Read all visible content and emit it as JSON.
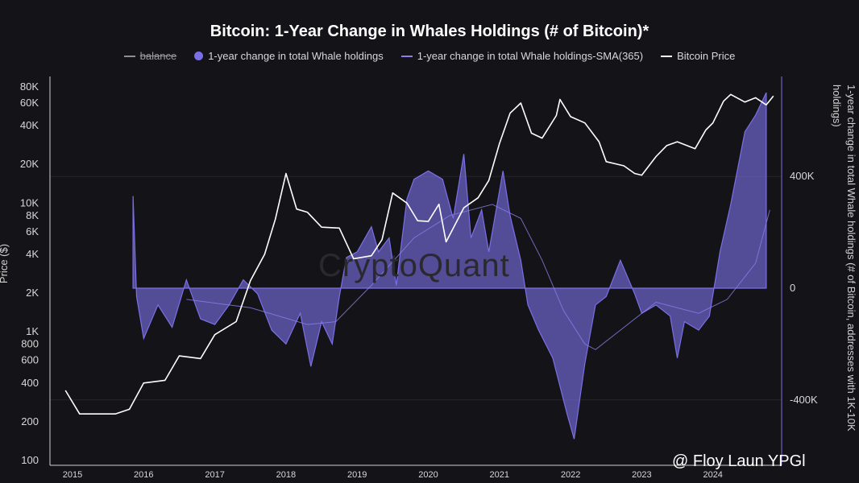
{
  "chart_data": {
    "type": "area",
    "title": "Bitcoin: 1-Year Change in Whales Holdings (# of Bitcoin)*",
    "y_left_label": "Price ($)",
    "y_right_label": "1-year change in total Whale holdings (# of Bitcoin, addresses with 1K-10K holdings)",
    "y_left_scale": "log",
    "y_left_ticks": [
      100,
      200,
      400,
      600,
      800,
      1000,
      2000,
      4000,
      6000,
      8000,
      10000,
      20000,
      40000,
      60000,
      80000
    ],
    "y_left_tick_labels": [
      "100",
      "200",
      "400",
      "600",
      "800",
      "1K",
      "2K",
      "4K",
      "6K",
      "8K",
      "10K",
      "20K",
      "40K",
      "60K",
      "80K"
    ],
    "y_right_ticks": [
      -400000,
      0,
      400000
    ],
    "y_right_tick_labels": [
      "-400K",
      "0",
      "400K"
    ],
    "x_ticks": [
      "2015",
      "2016",
      "2017",
      "2018",
      "2019",
      "2020",
      "2021",
      "2022",
      "2023",
      "2024"
    ],
    "x_range": [
      2014.8,
      2024.9
    ],
    "legend_position": "top-center",
    "series": [
      {
        "name": "balance",
        "color": "#8f8f8f",
        "style": "line-struck"
      },
      {
        "name": "1-year change in total Whale holdings",
        "color": "#7b6fe6",
        "style": "area",
        "points": [
          [
            2015.85,
            330000
          ],
          [
            2015.9,
            -30000
          ],
          [
            2016.0,
            -180000
          ],
          [
            2016.2,
            -60000
          ],
          [
            2016.4,
            -140000
          ],
          [
            2016.6,
            30000
          ],
          [
            2016.8,
            -110000
          ],
          [
            2017.0,
            -130000
          ],
          [
            2017.2,
            -60000
          ],
          [
            2017.4,
            30000
          ],
          [
            2017.6,
            -20000
          ],
          [
            2017.8,
            -150000
          ],
          [
            2018.0,
            -200000
          ],
          [
            2018.2,
            -90000
          ],
          [
            2018.35,
            -280000
          ],
          [
            2018.5,
            -120000
          ],
          [
            2018.65,
            -200000
          ],
          [
            2018.75,
            -30000
          ],
          [
            2018.85,
            110000
          ],
          [
            2019.0,
            130000
          ],
          [
            2019.2,
            220000
          ],
          [
            2019.3,
            130000
          ],
          [
            2019.45,
            180000
          ],
          [
            2019.55,
            10000
          ],
          [
            2019.7,
            320000
          ],
          [
            2019.8,
            390000
          ],
          [
            2020.0,
            420000
          ],
          [
            2020.2,
            390000
          ],
          [
            2020.35,
            250000
          ],
          [
            2020.5,
            480000
          ],
          [
            2020.6,
            180000
          ],
          [
            2020.75,
            280000
          ],
          [
            2020.85,
            130000
          ],
          [
            2021.05,
            420000
          ],
          [
            2021.15,
            260000
          ],
          [
            2021.3,
            100000
          ],
          [
            2021.4,
            -60000
          ],
          [
            2021.55,
            -150000
          ],
          [
            2021.75,
            -250000
          ],
          [
            2021.95,
            -450000
          ],
          [
            2022.05,
            -540000
          ],
          [
            2022.2,
            -270000
          ],
          [
            2022.35,
            -60000
          ],
          [
            2022.5,
            -30000
          ],
          [
            2022.7,
            100000
          ],
          [
            2022.9,
            -20000
          ],
          [
            2023.0,
            -90000
          ],
          [
            2023.2,
            -60000
          ],
          [
            2023.4,
            -100000
          ],
          [
            2023.5,
            -250000
          ],
          [
            2023.6,
            -120000
          ],
          [
            2023.8,
            -150000
          ],
          [
            2023.95,
            -100000
          ],
          [
            2024.1,
            130000
          ],
          [
            2024.25,
            300000
          ],
          [
            2024.45,
            560000
          ],
          [
            2024.6,
            620000
          ],
          [
            2024.75,
            700000
          ]
        ]
      },
      {
        "name": "1-year change in total Whale holdings-SMA(365)",
        "color": "#8a7fe8",
        "style": "line",
        "points": [
          [
            2016.6,
            -40000
          ],
          [
            2017.5,
            -70000
          ],
          [
            2018.3,
            -130000
          ],
          [
            2018.7,
            -120000
          ],
          [
            2019.2,
            10000
          ],
          [
            2019.8,
            180000
          ],
          [
            2020.3,
            260000
          ],
          [
            2020.9,
            300000
          ],
          [
            2021.3,
            250000
          ],
          [
            2021.6,
            100000
          ],
          [
            2021.9,
            -80000
          ],
          [
            2022.2,
            -200000
          ],
          [
            2022.35,
            -220000
          ],
          [
            2022.7,
            -150000
          ],
          [
            2023.2,
            -50000
          ],
          [
            2023.8,
            -90000
          ],
          [
            2024.2,
            -40000
          ],
          [
            2024.6,
            90000
          ],
          [
            2024.8,
            280000
          ]
        ]
      },
      {
        "name": "Bitcoin Price",
        "color": "#ffffff",
        "style": "line",
        "points": [
          [
            2014.9,
            350
          ],
          [
            2015.1,
            230
          ],
          [
            2015.3,
            230
          ],
          [
            2015.6,
            230
          ],
          [
            2015.8,
            250
          ],
          [
            2016.0,
            400
          ],
          [
            2016.3,
            420
          ],
          [
            2016.5,
            650
          ],
          [
            2016.8,
            620
          ],
          [
            2017.0,
            950
          ],
          [
            2017.3,
            1200
          ],
          [
            2017.5,
            2500
          ],
          [
            2017.7,
            4000
          ],
          [
            2017.85,
            7500
          ],
          [
            2018.0,
            17000
          ],
          [
            2018.15,
            9000
          ],
          [
            2018.3,
            8500
          ],
          [
            2018.5,
            6500
          ],
          [
            2018.75,
            6400
          ],
          [
            2018.95,
            3700
          ],
          [
            2019.2,
            3900
          ],
          [
            2019.35,
            5200
          ],
          [
            2019.5,
            12000
          ],
          [
            2019.7,
            10000
          ],
          [
            2019.85,
            7300
          ],
          [
            2020.0,
            7200
          ],
          [
            2020.15,
            9800
          ],
          [
            2020.25,
            5000
          ],
          [
            2020.5,
            9200
          ],
          [
            2020.7,
            11000
          ],
          [
            2020.85,
            15000
          ],
          [
            2021.0,
            29000
          ],
          [
            2021.15,
            50000
          ],
          [
            2021.3,
            60000
          ],
          [
            2021.45,
            35000
          ],
          [
            2021.6,
            32000
          ],
          [
            2021.8,
            48000
          ],
          [
            2021.85,
            64000
          ],
          [
            2022.0,
            47000
          ],
          [
            2022.2,
            42000
          ],
          [
            2022.4,
            30000
          ],
          [
            2022.5,
            21000
          ],
          [
            2022.75,
            19500
          ],
          [
            2022.9,
            17000
          ],
          [
            2023.0,
            16500
          ],
          [
            2023.2,
            23000
          ],
          [
            2023.35,
            28000
          ],
          [
            2023.5,
            30000
          ],
          [
            2023.75,
            26500
          ],
          [
            2023.9,
            37000
          ],
          [
            2024.0,
            42000
          ],
          [
            2024.15,
            62000
          ],
          [
            2024.25,
            70000
          ],
          [
            2024.45,
            61000
          ],
          [
            2024.6,
            66000
          ],
          [
            2024.75,
            58000
          ],
          [
            2024.85,
            68000
          ]
        ]
      }
    ]
  },
  "legend": [
    {
      "label": "balance"
    },
    {
      "label": "1-year change in total Whale holdings"
    },
    {
      "label": "1-year change in total Whale holdings-SMA(365)"
    },
    {
      "label": "Bitcoin Price"
    }
  ],
  "watermark": "CryptoQuant",
  "credit": "@ Floy Laun YPGl",
  "colors": {
    "background": "#141317",
    "area": "#7b6fe6",
    "grid": "#2a2a30",
    "axis": "#cfcfcf"
  }
}
